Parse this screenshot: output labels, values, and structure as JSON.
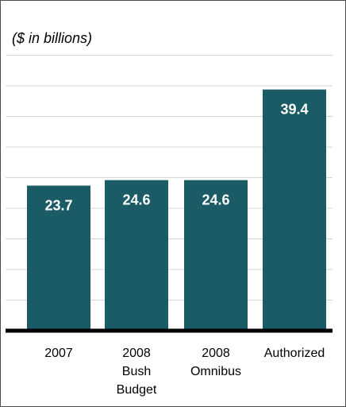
{
  "chart_data": {
    "type": "bar",
    "subtitle": "($ in billions)",
    "categories": [
      "2007",
      "2008 Bush Budget",
      "2008 Omnibus",
      "Authorized"
    ],
    "category_lines": [
      [
        "2007"
      ],
      [
        "2008",
        "Bush",
        "Budget"
      ],
      [
        "2008",
        "Omnibus"
      ],
      [
        "Authorized"
      ]
    ],
    "values": [
      23.7,
      24.6,
      24.6,
      39.4
    ],
    "value_labels": [
      "23.7",
      "24.6",
      "24.6",
      "39.4"
    ],
    "ylim": [
      0,
      45
    ],
    "grid": true,
    "legend": "none",
    "colors": {
      "bar": "#1b5b66",
      "bar_label": "#ffffff",
      "gridline": "#d4d4d4",
      "baseline": "#000000",
      "text": "#000000",
      "frame": "#4d4d4d"
    }
  }
}
